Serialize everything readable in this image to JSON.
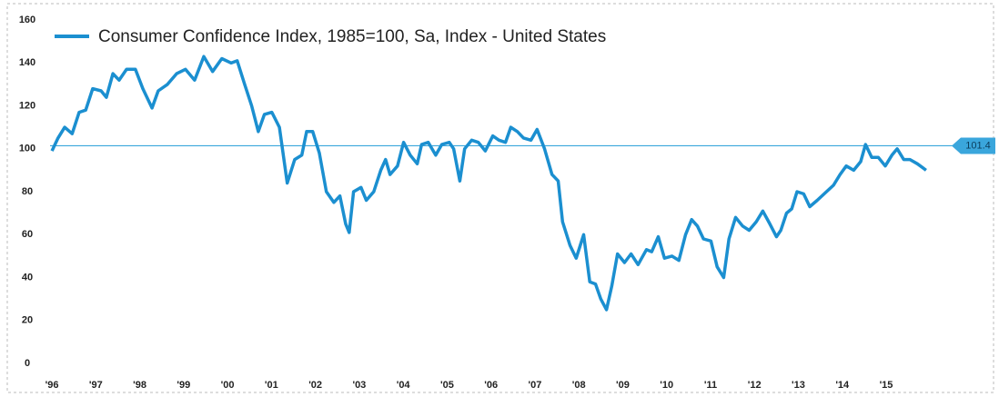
{
  "chart_data": {
    "type": "line",
    "series": [
      {
        "name": "Consumer Confidence Index, 1985=100, Sa, Index - United States",
        "color": "#1b8fd0",
        "x": [
          1996.0,
          1996.14,
          1996.29,
          1996.46,
          1996.62,
          1996.77,
          1996.93,
          1997.12,
          1997.24,
          1997.39,
          1997.53,
          1997.7,
          1997.9,
          1998.07,
          1998.28,
          1998.42,
          1998.63,
          1998.84,
          1999.04,
          1999.25,
          1999.46,
          1999.66,
          1999.87,
          2000.08,
          2000.22,
          2000.39,
          2000.55,
          2000.7,
          2000.84,
          2001.01,
          2001.18,
          2001.36,
          2001.53,
          2001.69,
          2001.8,
          2001.94,
          2002.09,
          2002.25,
          2002.42,
          2002.56,
          2002.69,
          2002.77,
          2002.87,
          2003.04,
          2003.16,
          2003.33,
          2003.49,
          2003.6,
          2003.7,
          2003.87,
          2004.01,
          2004.16,
          2004.32,
          2004.42,
          2004.57,
          2004.74,
          2004.88,
          2005.05,
          2005.15,
          2005.29,
          2005.4,
          2005.56,
          2005.71,
          2005.87,
          2006.04,
          2006.18,
          2006.33,
          2006.45,
          2006.6,
          2006.74,
          2006.91,
          2007.05,
          2007.22,
          2007.39,
          2007.53,
          2007.63,
          2007.8,
          2007.94,
          2008.11,
          2008.25,
          2008.38,
          2008.5,
          2008.63,
          2008.75,
          2008.88,
          2009.04,
          2009.19,
          2009.35,
          2009.54,
          2009.66,
          2009.81,
          2009.95,
          2010.12,
          2010.28,
          2010.43,
          2010.57,
          2010.7,
          2010.84,
          2011.01,
          2011.15,
          2011.3,
          2011.42,
          2011.57,
          2011.73,
          2011.88,
          2012.04,
          2012.19,
          2012.35,
          2012.5,
          2012.6,
          2012.73,
          2012.85,
          2012.97,
          2013.12,
          2013.26,
          2013.43,
          2013.64,
          2013.8,
          2013.95,
          2014.09,
          2014.26,
          2014.42,
          2014.53,
          2014.67,
          2014.82,
          2014.98,
          2015.13,
          2015.25,
          2015.4,
          2015.54,
          2015.71,
          2015.91
        ],
        "values": [
          99,
          105,
          110,
          107,
          117,
          118,
          128,
          127,
          124,
          135,
          132,
          137,
          137,
          128,
          119,
          127,
          130,
          135,
          137,
          132,
          143,
          136,
          142,
          140,
          141,
          130,
          120,
          108,
          116,
          117,
          110,
          84,
          95,
          97,
          108,
          108,
          98,
          80,
          75,
          78,
          65,
          61,
          80,
          82,
          76,
          80,
          90,
          95,
          88,
          92,
          103,
          97,
          93,
          102,
          103,
          97,
          102,
          103,
          100,
          85,
          100,
          104,
          103,
          99,
          106,
          104,
          103,
          110,
          108,
          105,
          104,
          109,
          100,
          88,
          85,
          66,
          55,
          49,
          60,
          38,
          37,
          30,
          25,
          36,
          51,
          47,
          51,
          46,
          53,
          52,
          59,
          49,
          50,
          48,
          60,
          67,
          64,
          58,
          57,
          45,
          40,
          58,
          68,
          64,
          62,
          66,
          71,
          65,
          59,
          62,
          70,
          72,
          80,
          79,
          73,
          76,
          80,
          83,
          88,
          92,
          90,
          94,
          102,
          96,
          96,
          92,
          97,
          100,
          95,
          95,
          93,
          90
        ]
      }
    ],
    "reference_line": {
      "value": 101.4,
      "label": "101.4",
      "color": "#3aa6dc"
    },
    "xlim": [
      1995.75,
      2017.3
    ],
    "xticks": [
      {
        "value": 1996,
        "label": "'96"
      },
      {
        "value": 1997,
        "label": "'97"
      },
      {
        "value": 1998,
        "label": "'98"
      },
      {
        "value": 1999,
        "label": "'99"
      },
      {
        "value": 2000,
        "label": "'00"
      },
      {
        "value": 2001,
        "label": "'01"
      },
      {
        "value": 2002,
        "label": "'02"
      },
      {
        "value": 2003,
        "label": "'03"
      },
      {
        "value": 2004,
        "label": "'04"
      },
      {
        "value": 2005,
        "label": "'05"
      },
      {
        "value": 2006,
        "label": "'06"
      },
      {
        "value": 2007,
        "label": "'07"
      },
      {
        "value": 2008,
        "label": "'08"
      },
      {
        "value": 2009,
        "label": "'09"
      },
      {
        "value": 2010,
        "label": "'10"
      },
      {
        "value": 2011,
        "label": "'11"
      },
      {
        "value": 2012,
        "label": "'12"
      },
      {
        "value": 2013,
        "label": "'13"
      },
      {
        "value": 2014,
        "label": "'14"
      },
      {
        "value": 2015,
        "label": "'15"
      }
    ],
    "ylim": [
      0,
      160
    ],
    "yticks": [
      0,
      20,
      40,
      60,
      80,
      100,
      120,
      140,
      160
    ],
    "grid": false
  }
}
